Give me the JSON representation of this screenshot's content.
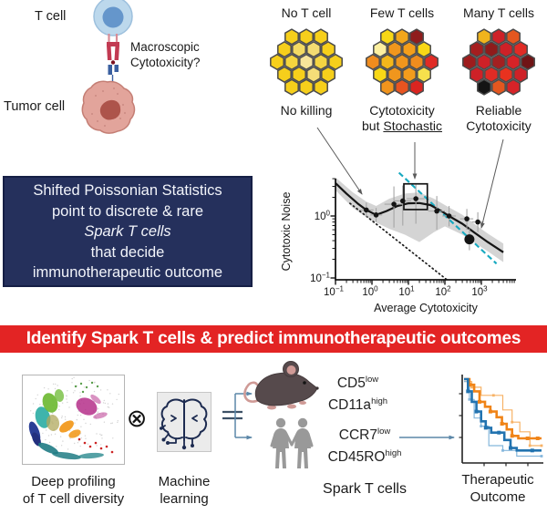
{
  "top_left": {
    "t_cell_label": "T cell",
    "tumor_cell_label": "Tumor cell",
    "question_line1": "Macroscopic",
    "question_line2": "Cytotoxicity?"
  },
  "honeycombs": [
    {
      "title": "No T cell",
      "caption": {
        "line1": "No killing",
        "line2_prefix": "",
        "line2_underlined": ""
      },
      "cells": [
        "#f6cf1b",
        "#f6cf1b",
        "#f6cf1b",
        "#f6cf1b",
        "#f3da63",
        "#f4dc72",
        "#f6cf1b",
        "#f6cf1b",
        "#f5d53e",
        "#f7e49a",
        "#f5d542",
        "#f6cf1b",
        "#f6cf1b",
        "#f6cf1b",
        "#f4dd78",
        "#f6cf1b",
        "#f6cf1b",
        "#f6cf1b",
        "#f6cf1b"
      ]
    },
    {
      "title": "Few T cells",
      "caption": {
        "line1": "Cytotoxicity",
        "line2_prefix": "but ",
        "line2_underlined": "Stochastic"
      },
      "cells": [
        "#f8d816",
        "#f2a71b",
        "#8f1d1d",
        "#fdf0a0",
        "#f0961d",
        "#f49e1a",
        "#f8d816",
        "#ef8c1e",
        "#f3b71b",
        "#f0961d",
        "#ef8c1e",
        "#e02b25",
        "#f8d816",
        "#f0961d",
        "#f29c1c",
        "#f6e04c",
        "#f0941d",
        "#e85420",
        "#da2420"
      ]
    },
    {
      "title": "Many T cells",
      "caption": {
        "line1": "Reliable",
        "line2_prefix": "Cytotoxicity",
        "line2_underlined": ""
      },
      "cells": [
        "#f0b41c",
        "#ce2127",
        "#e4571f",
        "#a61e1f",
        "#8f1b1b",
        "#ce2127",
        "#e02b25",
        "#9e1c1d",
        "#ce2127",
        "#a32021",
        "#d72328",
        "#701416",
        "#ce2127",
        "#e02b25",
        "#e8321f",
        "#ce2127",
        "#141414",
        "#e4571f",
        "#d72328"
      ]
    }
  ],
  "statement_box": {
    "bg": "#25305c",
    "lines": [
      "Shifted Poissonian Statistics",
      "point to discrete & rare",
      "Spark T cells",
      "that decide",
      "immunotherapeutic outcome"
    ],
    "italic_line_index": 2
  },
  "banner": {
    "bg": "#e32424",
    "text": "Identify Spark T cells & predict immunotherapeutic outcomes"
  },
  "chart_data": [
    {
      "type": "scatter",
      "id": "cytotoxic-noise",
      "xlabel": "Average Cytotoxicity",
      "ylabel": "Cytotoxic Noise",
      "xscale": "log",
      "yscale": "log",
      "xlim": [
        0.1,
        8000
      ],
      "ylim": [
        0.09,
        4
      ],
      "xticks": [
        [
          0.1,
          "−1"
        ],
        [
          1,
          "0"
        ],
        [
          10,
          "1"
        ],
        [
          100,
          "2"
        ],
        [
          1000,
          "3"
        ]
      ],
      "yticks": [
        [
          1,
          "0"
        ],
        [
          0.1,
          "−1"
        ]
      ],
      "curve": [
        [
          0.1,
          3.4
        ],
        [
          0.2,
          2.3
        ],
        [
          0.4,
          1.6
        ],
        [
          0.7,
          1.25
        ],
        [
          1.3,
          1.04
        ],
        [
          2.5,
          1.2
        ],
        [
          5,
          1.45
        ],
        [
          10,
          1.6
        ],
        [
          20,
          1.62
        ],
        [
          40,
          1.5
        ],
        [
          80,
          1.2
        ],
        [
          150,
          0.95
        ],
        [
          300,
          0.75
        ],
        [
          700,
          0.52
        ],
        [
          1500,
          0.38
        ],
        [
          4000,
          0.26
        ]
      ],
      "band_upper": [
        [
          0.1,
          4.2
        ],
        [
          0.3,
          2.4
        ],
        [
          0.7,
          1.7
        ],
        [
          1.3,
          1.45
        ],
        [
          3,
          1.9
        ],
        [
          8,
          2.3
        ],
        [
          20,
          2.4
        ],
        [
          50,
          1.9
        ],
        [
          100,
          1.5
        ],
        [
          300,
          1.05
        ],
        [
          700,
          0.72
        ],
        [
          1500,
          0.52
        ],
        [
          4000,
          0.36
        ]
      ],
      "band_lower": [
        [
          0.1,
          2.6
        ],
        [
          0.3,
          1.35
        ],
        [
          0.7,
          0.95
        ],
        [
          1.3,
          0.78
        ],
        [
          3,
          0.62
        ],
        [
          8,
          0.5
        ],
        [
          20,
          0.38
        ],
        [
          50,
          0.55
        ],
        [
          100,
          0.68
        ],
        [
          300,
          0.5
        ],
        [
          700,
          0.36
        ],
        [
          1500,
          0.27
        ],
        [
          4000,
          0.18
        ]
      ],
      "points": [
        {
          "x": 0.7,
          "y": 1.25,
          "ylo": 0.95,
          "yhi": 1.65,
          "xlo": 0.45,
          "xhi": 1.1
        },
        {
          "x": 1.3,
          "y": 1.04,
          "ylo": 0.8,
          "yhi": 1.35,
          "xlo": 0.9,
          "xhi": 1.9
        },
        {
          "x": 4,
          "y": 1.55,
          "ylo": 0.65,
          "yhi": 3.0,
          "xlo": 2.2,
          "xhi": 7.5
        },
        {
          "x": 7,
          "y": 1.75,
          "ylo": 0.7,
          "yhi": 3.1,
          "xlo": 4,
          "xhi": 12
        },
        {
          "x": 16,
          "y": 1.9,
          "ylo": 0.75,
          "yhi": 3.2,
          "xlo": 9,
          "xhi": 28
        },
        {
          "x": 60,
          "y": 1.2,
          "ylo": 0.6,
          "yhi": 2.1,
          "xlo": 35,
          "xhi": 100
        },
        {
          "x": 130,
          "y": 1.0,
          "ylo": 0.68,
          "yhi": 1.45,
          "xlo": 85,
          "xhi": 200
        },
        {
          "x": 400,
          "y": 0.9,
          "ylo": 0.6,
          "yhi": 1.3,
          "xlo": 260,
          "xhi": 600
        },
        {
          "x": 800,
          "y": 0.8,
          "ylo": 0.55,
          "yhi": 1.15,
          "xlo": 550,
          "xhi": 1150
        },
        {
          "x": 470,
          "y": 0.42,
          "big": true,
          "ylo": 0.28,
          "yhi": 0.63
        }
      ],
      "poisson_line": {
        "from": [
          0.25,
          1.6
        ],
        "to": [
          110,
          0.095
        ],
        "style": "dotted",
        "color": "#1a1a1a"
      },
      "shifted_line": {
        "from": [
          5.5,
          5.0
        ],
        "to": [
          2600,
          0.17
        ],
        "style": "dashed",
        "color": "#17a9c0"
      },
      "highlight_box": {
        "x1": 7.5,
        "x2": 33,
        "y1": 1.27,
        "y2": 3.3
      }
    },
    {
      "type": "line",
      "id": "therapeutic-outcome",
      "xlabel": "",
      "ylabel": "",
      "series": [
        {
          "color": "#f7b266",
          "width": 1.2,
          "markers": true,
          "points": [
            [
              0,
              0.97
            ],
            [
              0.1,
              0.9
            ],
            [
              0.22,
              0.8
            ],
            [
              0.38,
              0.8
            ],
            [
              0.5,
              0.62
            ],
            [
              0.62,
              0.47
            ],
            [
              0.72,
              0.35
            ],
            [
              0.85,
              0.18
            ],
            [
              1,
              0.18
            ]
          ]
        },
        {
          "color": "#85b7dc",
          "width": 1.2,
          "markers": true,
          "points": [
            [
              0,
              0.97
            ],
            [
              0.07,
              0.75
            ],
            [
              0.13,
              0.52
            ],
            [
              0.22,
              0.42
            ],
            [
              0.32,
              0.18
            ],
            [
              0.5,
              0.12
            ],
            [
              0.68,
              0.05
            ],
            [
              1,
              0.05
            ]
          ]
        },
        {
          "color": "#f08418",
          "width": 2.6,
          "markers": true,
          "points": [
            [
              0,
              1
            ],
            [
              0.07,
              0.93
            ],
            [
              0.13,
              0.85
            ],
            [
              0.2,
              0.72
            ],
            [
              0.27,
              0.66
            ],
            [
              0.34,
              0.6
            ],
            [
              0.42,
              0.53
            ],
            [
              0.49,
              0.45
            ],
            [
              0.55,
              0.38
            ],
            [
              0.62,
              0.3
            ],
            [
              0.7,
              0.27
            ],
            [
              0.82,
              0.27
            ],
            [
              0.95,
              0.27
            ]
          ]
        },
        {
          "color": "#2273b0",
          "width": 2.6,
          "markers": true,
          "points": [
            [
              0,
              1
            ],
            [
              0.05,
              0.85
            ],
            [
              0.1,
              0.72
            ],
            [
              0.16,
              0.6
            ],
            [
              0.22,
              0.48
            ],
            [
              0.28,
              0.4
            ],
            [
              0.35,
              0.34
            ],
            [
              0.45,
              0.34
            ],
            [
              0.52,
              0.25
            ],
            [
              0.6,
              0.15
            ],
            [
              0.68,
              0.12
            ],
            [
              0.88,
              0.12
            ]
          ]
        }
      ]
    }
  ],
  "bottom": {
    "tsne_caption_line1": "Deep profiling",
    "tsne_caption_line2": "of T cell diversity",
    "otimes_symbol": "⊗",
    "ml_caption_line1": "Machine",
    "ml_caption_line2": "learning",
    "mouse_markers": [
      {
        "base": "CD5",
        "sup": "low"
      },
      {
        "base": "CD11a",
        "sup": "high"
      }
    ],
    "human_markers": [
      {
        "base": "CCR7",
        "sup": "low"
      },
      {
        "base": "CD45RO",
        "sup": "high"
      }
    ],
    "spark_label": "Spark T cells",
    "outcome_caption_line1": "Therapeutic",
    "outcome_caption_line2": "Outcome"
  },
  "palette": {
    "connector_blue": "#5b87a8",
    "equals_dark": "#3d5166",
    "pointer_gray": "#5a5a5a"
  }
}
